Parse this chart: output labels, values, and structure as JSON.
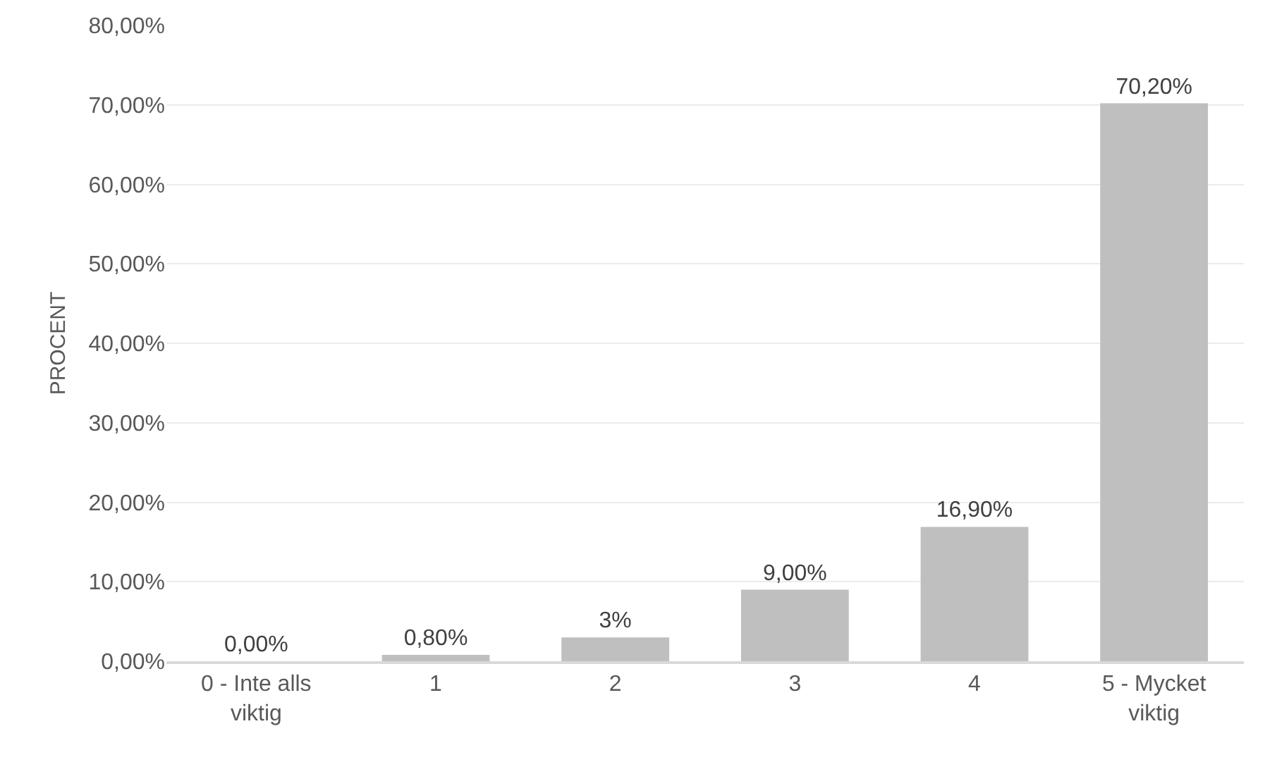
{
  "chart_data": {
    "type": "bar",
    "ylabel": "PROCENT",
    "categories": [
      "0 - Inte alls viktig",
      "1",
      "2",
      "3",
      "4",
      "5 - Mycket viktig"
    ],
    "values": [
      0,
      0.8,
      3,
      9,
      16.9,
      70.2
    ],
    "value_labels": [
      "0,00%",
      "0,80%",
      "3%",
      "9,00%",
      "16,90%",
      "70,20%"
    ],
    "color": "#bfbfbf",
    "ylim": [
      0,
      80
    ],
    "yticks": [
      {
        "value": 0,
        "label": "0,00%"
      },
      {
        "value": 10,
        "label": "10,00%"
      },
      {
        "value": 20,
        "label": "20,00%"
      },
      {
        "value": 30,
        "label": "30,00%"
      },
      {
        "value": 40,
        "label": "40,00%"
      },
      {
        "value": 50,
        "label": "50,00%"
      },
      {
        "value": 60,
        "label": "60,00%"
      },
      {
        "value": 70,
        "label": "70,00%"
      },
      {
        "value": 80,
        "label": "80,00%"
      }
    ],
    "grid": "y",
    "legend": false
  }
}
